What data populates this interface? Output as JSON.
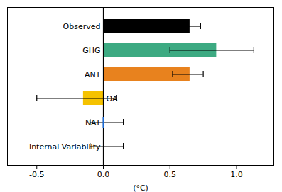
{
  "chart_data": {
    "type": "bar",
    "orientation": "horizontal",
    "categories": [
      "Observed",
      "GHG",
      "ANT",
      "OA",
      "NAT",
      "Internal Variability"
    ],
    "values": [
      0.65,
      0.85,
      0.65,
      -0.15,
      0.0,
      0.0
    ],
    "colors": [
      "#000000",
      "#3daa82",
      "#e8821e",
      "#f5c200",
      "#1a6ad6",
      null
    ],
    "error_centers": [
      0.65,
      0.7,
      0.62,
      0.0,
      0.02,
      0.02
    ],
    "error_low": [
      0.08,
      0.2,
      0.1,
      0.5,
      0.12,
      0.12
    ],
    "error_high": [
      0.08,
      0.43,
      0.13,
      0.1,
      0.13,
      0.13
    ],
    "xlabel": "(°C)",
    "xlim": [
      -0.72,
      1.28
    ],
    "xticks": [
      -0.5,
      {
        "value": 0.0,
        "label": "0.0"
      },
      0.5,
      {
        "value": 1.0,
        "label": "1.0"
      }
    ],
    "grid": false
  }
}
